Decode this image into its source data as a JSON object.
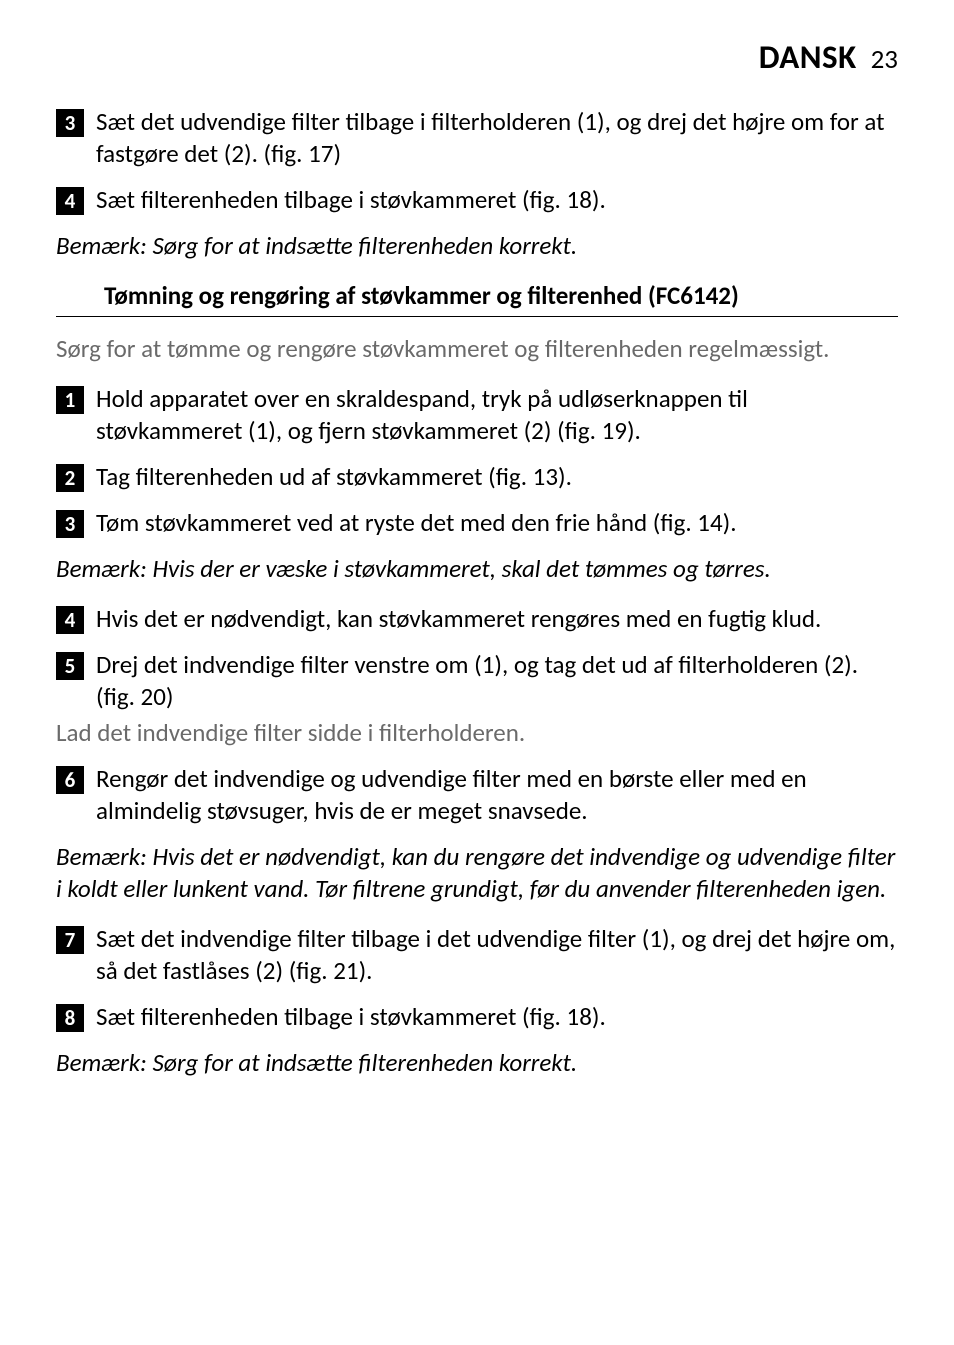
{
  "header": {
    "language": "DANSK",
    "page": "23"
  },
  "stepsA": [
    {
      "n": "3",
      "text": "Sæt det udvendige filter tilbage i filterholderen (1), og drej det højre om for at fastgøre det (2).  (fig. 17)"
    },
    {
      "n": "4",
      "text": "Sæt filterenheden tilbage i støvkammeret (fig. 18)."
    }
  ],
  "noteA": "Bemærk: Sørg for at indsætte filterenheden korrekt.",
  "section": {
    "title": "Tømning og rengøring af støvkammer og filterenhed (FC6142)"
  },
  "intro": "Sørg for at tømme og rengøre støvkammeret og filterenheden regelmæssigt.",
  "stepsB": [
    {
      "n": "1",
      "text": "Hold apparatet over en skraldespand, tryk på udløserknappen til støvkammeret (1), og fjern støvkammeret (2) (fig. 19)."
    },
    {
      "n": "2",
      "text": "Tag filterenheden ud af støvkammeret (fig. 13)."
    },
    {
      "n": "3",
      "text": "Tøm støvkammeret ved at ryste det med den frie hånd (fig. 14)."
    }
  ],
  "noteB": "Bemærk: Hvis der er væske i støvkammeret, skal det tømmes og tørres.",
  "stepsC": [
    {
      "n": "4",
      "text": "Hvis det er nødvendigt, kan støvkammeret rengøres med en fugtig klud."
    },
    {
      "n": "5",
      "text": "Drej det indvendige filter venstre om (1), og tag det ud af filterholderen (2).  (fig. 20)"
    }
  ],
  "postline": "Lad det indvendige filter sidde i filterholderen.",
  "stepsD": [
    {
      "n": "6",
      "text": "Rengør det indvendige og udvendige filter med en børste eller med en almindelig støvsuger, hvis de er meget snavsede."
    }
  ],
  "noteC": "Bemærk: Hvis det er nødvendigt, kan du rengøre det indvendige og udvendige filter i koldt eller lunkent vand. Tør filtrene grundigt, før du anvender filterenheden igen.",
  "stepsE": [
    {
      "n": "7",
      "text": "Sæt det indvendige filter tilbage i det udvendige filter (1), og drej det højre om, så det fastlåses (2) (fig. 21)."
    },
    {
      "n": "8",
      "text": "Sæt filterenheden tilbage i støvkammeret (fig. 18)."
    }
  ],
  "noteD": "Bemærk: Sørg for at indsætte filterenheden korrekt."
}
